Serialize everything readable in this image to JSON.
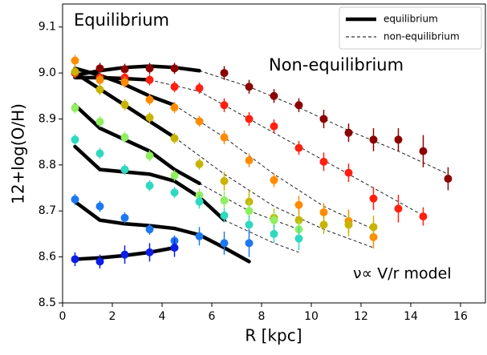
{
  "chart_data": {
    "type": "scatter",
    "xlabel": "R [kpc]",
    "ylabel": "12+log(O/H)",
    "xlim": [
      0,
      17
    ],
    "ylim": [
      8.5,
      9.15
    ],
    "xticks": [
      0,
      2,
      4,
      6,
      8,
      10,
      12,
      14,
      16
    ],
    "yticks": [
      8.5,
      8.6,
      8.7,
      8.8,
      8.9,
      {
        "value": 9,
        "label": "9.0"
      },
      9.1
    ],
    "annotations": [
      "Equilibrium",
      "Non-equilibrium",
      "ν∝ V/r model"
    ],
    "legend": {
      "position": "upper right",
      "entries": [
        {
          "label": "equilibrium",
          "style": "solid"
        },
        {
          "label": "non-equilibrium",
          "style": "dashed"
        }
      ]
    },
    "profiles": [
      {
        "color": "#8b0000",
        "x": [
          0.5,
          1.5,
          2.5,
          3.5,
          4.5,
          6.5,
          7.5,
          8.5,
          9.5,
          10.5,
          11.5,
          12.5,
          13.5,
          14.5,
          15.5
        ],
        "values": [
          9.0,
          9.01,
          9.008,
          9.01,
          9.01,
          9.0,
          8.97,
          8.95,
          8.93,
          8.9,
          8.87,
          8.855,
          8.855,
          8.83,
          8.77
        ],
        "errors": [
          0.012,
          0.012,
          0.012,
          0.012,
          0.012,
          0.015,
          0.015,
          0.015,
          0.015,
          0.02,
          0.02,
          0.025,
          0.025,
          0.035,
          0.025
        ],
        "eq_x": [
          0.5,
          1.5,
          2.5,
          3.5,
          4.5,
          5.5
        ],
        "eq_values": [
          8.995,
          9.005,
          9.012,
          9.015,
          9.012,
          9.005
        ],
        "noneq_x": [
          5.5,
          7.5,
          9.5,
          11.5,
          13.5,
          15.5
        ],
        "noneq_values": [
          9.005,
          8.97,
          8.925,
          8.875,
          8.83,
          8.78
        ]
      },
      {
        "color": "#ff2010",
        "x": [
          0.5,
          1.5,
          2.5,
          3.5,
          4.5,
          5.5,
          6.5,
          7.5,
          8.5,
          9.5,
          10.5,
          11.5,
          12.5,
          13.5,
          14.5
        ],
        "values": [
          9.0,
          8.99,
          8.99,
          8.985,
          8.97,
          8.967,
          8.93,
          8.9,
          8.884,
          8.837,
          8.807,
          8.783,
          8.727,
          8.705,
          8.688
        ],
        "errors": [
          0.012,
          0.012,
          0.012,
          0.012,
          0.012,
          0.012,
          0.015,
          0.015,
          0.015,
          0.015,
          0.02,
          0.02,
          0.025,
          0.03,
          0.02
        ],
        "eq_x": [
          0.5,
          1.5,
          2.5,
          3.5
        ],
        "eq_values": [
          8.99,
          8.99,
          8.988,
          8.985
        ],
        "noneq_x": [
          3.5,
          5.5,
          7.5,
          9.5,
          11.5,
          13.5,
          14.5
        ],
        "noneq_values": [
          8.985,
          8.96,
          8.9,
          8.84,
          8.78,
          8.72,
          8.69
        ]
      },
      {
        "color": "#ff8c00",
        "x": [
          0.5,
          1.5,
          2.5,
          3.5,
          4.5,
          5.5,
          6.5,
          7.5,
          8.5,
          9.5,
          10.5,
          11.5,
          12.5
        ],
        "values": [
          9.027,
          8.985,
          8.98,
          8.942,
          8.925,
          8.895,
          8.86,
          8.81,
          8.767,
          8.713,
          8.697,
          8.678,
          8.643
        ],
        "errors": [
          0.012,
          0.012,
          0.012,
          0.012,
          0.012,
          0.012,
          0.015,
          0.015,
          0.015,
          0.02,
          0.02,
          0.025,
          0.025
        ],
        "eq_x": [
          0.5,
          1.5,
          2.5,
          3.5,
          4.5
        ],
        "eq_values": [
          9.01,
          8.995,
          8.975,
          8.95,
          8.93
        ],
        "noneq_x": [
          4.5,
          6.5,
          8.5,
          10.5,
          12.5
        ],
        "noneq_values": [
          8.93,
          8.86,
          8.78,
          8.71,
          8.66
        ]
      },
      {
        "color": "#c8b400",
        "x": [
          0.5,
          1.5,
          2.5,
          3.5,
          4.5,
          5.5,
          6.5,
          7.5,
          8.5,
          9.5,
          10.5,
          11.5,
          12.5
        ],
        "values": [
          9.003,
          8.964,
          8.931,
          8.903,
          8.858,
          8.802,
          8.765,
          8.72,
          8.685,
          8.68,
          8.67,
          8.67,
          8.665
        ],
        "errors": [
          0.012,
          0.012,
          0.012,
          0.012,
          0.012,
          0.012,
          0.02,
          0.025,
          0.02,
          0.02,
          0.02,
          0.025,
          0.025
        ],
        "eq_x": [
          0.5,
          1.5,
          2.5,
          3.5,
          4.5
        ],
        "eq_values": [
          9.0,
          8.965,
          8.93,
          8.895,
          8.86
        ],
        "noneq_x": [
          4.5,
          6.5,
          8.5,
          10.5,
          12.5
        ],
        "noneq_values": [
          8.86,
          8.78,
          8.71,
          8.66,
          8.62
        ]
      },
      {
        "color": "#90ee60",
        "x": [
          0.5,
          1.5,
          2.5,
          3.5,
          4.5,
          5.5,
          6.5,
          7.5,
          8.5,
          9.5
        ],
        "values": [
          8.924,
          8.894,
          8.86,
          8.82,
          8.777,
          8.734,
          8.723,
          8.7,
          8.68,
          8.66
        ],
        "errors": [
          0.012,
          0.012,
          0.012,
          0.012,
          0.012,
          0.015,
          0.02,
          0.02,
          0.02,
          0.02
        ],
        "eq_x": [
          0.5,
          1.5,
          2.5,
          3.5,
          4.5,
          5.5
        ],
        "eq_values": [
          8.93,
          8.88,
          8.855,
          8.83,
          8.79,
          8.76
        ],
        "noneq_x": [
          5.5,
          7.5,
          9.5
        ],
        "noneq_values": [
          8.76,
          8.7,
          8.66
        ]
      },
      {
        "color": "#30d8c0",
        "x": [
          0.5,
          1.5,
          2.5,
          3.5,
          4.5,
          5.5,
          6.5,
          7.5,
          8.5,
          9.5
        ],
        "values": [
          8.855,
          8.825,
          8.79,
          8.755,
          8.74,
          8.72,
          8.69,
          8.67,
          8.65,
          8.64
        ],
        "errors": [
          0.012,
          0.012,
          0.012,
          0.012,
          0.012,
          0.015,
          0.015,
          0.02,
          0.02,
          0.025
        ],
        "eq_x": [
          0.5,
          1.5,
          2.5,
          3.5,
          4.5,
          5.5,
          6.5
        ],
        "eq_values": [
          8.84,
          8.79,
          8.785,
          8.78,
          8.765,
          8.73,
          8.68
        ],
        "noneq_x": [
          6.5,
          8.5,
          9.5
        ],
        "noneq_values": [
          8.68,
          8.63,
          8.61
        ]
      },
      {
        "color": "#1e78f0",
        "x": [
          0.5,
          1.5,
          2.5,
          3.5,
          4.5,
          5.5,
          6.5,
          7.5
        ],
        "values": [
          8.725,
          8.71,
          8.685,
          8.66,
          8.635,
          8.645,
          8.63,
          8.63
        ],
        "errors": [
          0.012,
          0.012,
          0.012,
          0.012,
          0.012,
          0.02,
          0.025,
          0.03
        ],
        "eq_x": [
          0.5,
          1.5,
          2.5,
          3.5,
          4.5,
          5.5,
          6.5,
          7.5
        ],
        "eq_values": [
          8.72,
          8.68,
          8.672,
          8.668,
          8.662,
          8.648,
          8.62,
          8.59
        ],
        "noneq_x": [],
        "noneq_values": []
      },
      {
        "color": "#0a1ee6",
        "x": [
          0.5,
          1.5,
          2.5,
          3.5,
          4.5
        ],
        "values": [
          8.595,
          8.59,
          8.605,
          8.61,
          8.62
        ],
        "errors": [
          0.015,
          0.015,
          0.02,
          0.02,
          0.02
        ],
        "eq_x": [
          0.5,
          1.5,
          2.5,
          3.5,
          4.5
        ],
        "eq_values": [
          8.595,
          8.598,
          8.603,
          8.61,
          8.62
        ],
        "noneq_x": [],
        "noneq_values": []
      }
    ]
  }
}
